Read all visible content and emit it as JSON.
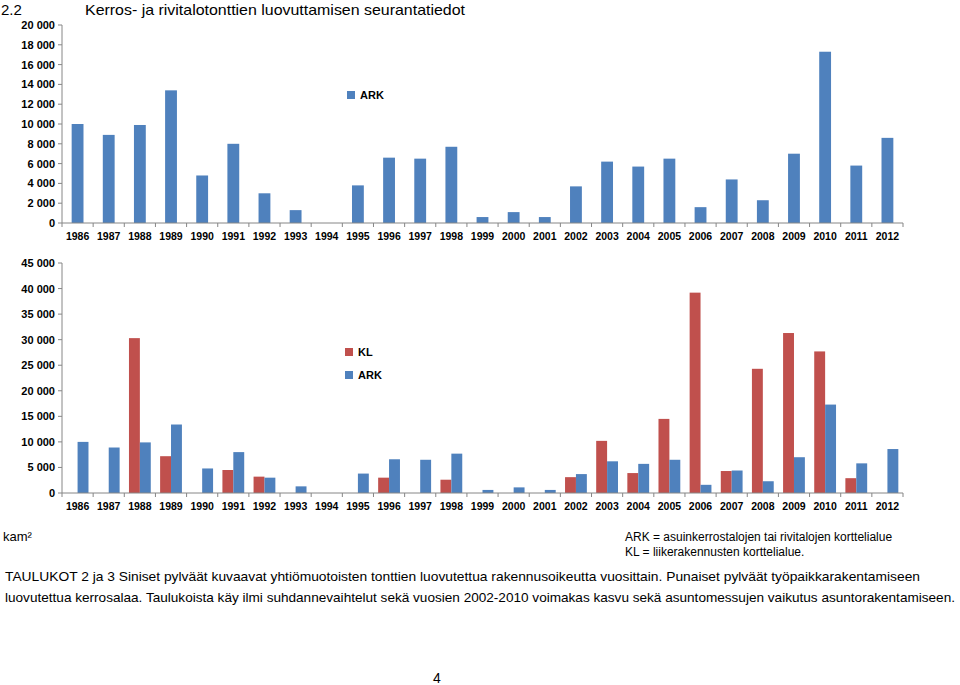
{
  "header": {
    "number": "2.2",
    "title": "Kerros- ja rivitalotonttien luovuttamisen seurantatiedot"
  },
  "chart_data": [
    {
      "type": "bar",
      "categories": [
        "1986",
        "1987",
        "1988",
        "1989",
        "1990",
        "1991",
        "1992",
        "1993",
        "1994",
        "1995",
        "1996",
        "1997",
        "1998",
        "1999",
        "2000",
        "2001",
        "2002",
        "2003",
        "2004",
        "2005",
        "2006",
        "2007",
        "2008",
        "2009",
        "2010",
        "2011",
        "2012"
      ],
      "series": [
        {
          "name": "ARK",
          "color": "#4f81bd",
          "values": [
            10000,
            8900,
            9900,
            13400,
            4800,
            8000,
            3000,
            1300,
            0,
            3800,
            6600,
            6500,
            7700,
            600,
            1100,
            600,
            3700,
            6200,
            5700,
            6500,
            1600,
            4400,
            2300,
            7000,
            17300,
            5800,
            8600
          ]
        }
      ],
      "ylim": [
        0,
        20000
      ],
      "yticks": [
        0,
        {
          "value": 2000,
          "label": "2 000"
        },
        {
          "value": 4000,
          "label": "4 000"
        },
        {
          "value": 6000,
          "label": "6 000"
        },
        {
          "value": 8000,
          "label": "8 000"
        },
        {
          "value": 10000,
          "label": "10 000"
        },
        {
          "value": 12000,
          "label": "12 000"
        },
        {
          "value": 14000,
          "label": "14 000"
        },
        {
          "value": 16000,
          "label": "16 000"
        },
        {
          "value": 18000,
          "label": "18 000"
        },
        {
          "value": 20000,
          "label": "20 000"
        }
      ],
      "grid": false,
      "legend": "top"
    },
    {
      "type": "bar",
      "categories": [
        "1986",
        "1987",
        "1988",
        "1989",
        "1990",
        "1991",
        "1992",
        "1993",
        "1994",
        "1995",
        "1996",
        "1997",
        "1998",
        "1999",
        "2000",
        "2001",
        "2002",
        "2003",
        "2004",
        "2005",
        "2006",
        "2007",
        "2008",
        "2009",
        "2010",
        "2011",
        "2012"
      ],
      "series": [
        {
          "name": "KL",
          "color": "#c0504d",
          "values": [
            0,
            0,
            30300,
            7200,
            0,
            4500,
            3200,
            0,
            0,
            0,
            3000,
            0,
            2600,
            0,
            0,
            0,
            3100,
            10200,
            3900,
            14500,
            39200,
            4300,
            24300,
            31300,
            27700,
            2900,
            0
          ]
        },
        {
          "name": "ARK",
          "color": "#4f81bd",
          "values": [
            10000,
            8900,
            9900,
            13400,
            4800,
            8000,
            3000,
            1300,
            0,
            3800,
            6600,
            6500,
            7700,
            600,
            1100,
            600,
            3700,
            6200,
            5700,
            6500,
            1600,
            4400,
            2300,
            7000,
            17300,
            5800,
            8600
          ]
        }
      ],
      "ylim": [
        0,
        45000
      ],
      "yticks": [
        0,
        {
          "value": 5000,
          "label": "5 000"
        },
        {
          "value": 10000,
          "label": "10 000"
        },
        {
          "value": 15000,
          "label": "15 000"
        },
        {
          "value": 20000,
          "label": "20 000"
        },
        {
          "value": 25000,
          "label": "25 000"
        },
        {
          "value": 30000,
          "label": "30 000"
        },
        {
          "value": 35000,
          "label": "35 000"
        },
        {
          "value": 40000,
          "label": "40 000"
        },
        {
          "value": 45000,
          "label": "45 000"
        }
      ],
      "grid": false,
      "legend": "top"
    }
  ],
  "unit_label": "kam²",
  "legend_notes": [
    "ARK = asuinkerrostalojen tai rivitalojen korttelialue",
    "KL = liikerakennusten korttelialue."
  ],
  "caption": [
    "TAULUKOT 2 ja 3 Siniset pylväät kuvaavat yhtiömuotoisten tonttien luovutettua rakennusoikeutta vuosittain. Punaiset pylväät työpaikkarakentamiseen",
    "luovutettua kerrosalaa. Taulukoista käy ilmi suhdannevaihtelut sekä vuosien 2002-2010 voimakas kasvu sekä asuntomessujen vaikutus asuntorakentamiseen."
  ],
  "page_number": "4"
}
